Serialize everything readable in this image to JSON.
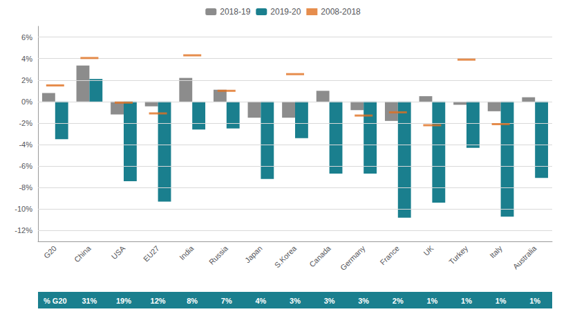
{
  "chart_data": {
    "type": "bar",
    "categories": [
      "G20",
      "China",
      "USA",
      "EU27",
      "India",
      "Russia",
      "Japan",
      "S.Korea",
      "Canada",
      "Germany",
      "France",
      "UK",
      "Turkey",
      "Italy",
      "Australia"
    ],
    "series": [
      {
        "name": "2018-19",
        "type": "bar",
        "color": "#8c8c8c",
        "values": [
          0.8,
          3.35,
          -1.2,
          -0.45,
          2.2,
          1.1,
          -1.5,
          -1.5,
          1.0,
          -0.8,
          -1.8,
          0.5,
          -0.3,
          -0.9,
          0.4
        ]
      },
      {
        "name": "2019-20",
        "type": "bar",
        "color": "#1a7f8e",
        "values": [
          -3.5,
          2.1,
          -7.4,
          -9.3,
          -2.6,
          -2.5,
          -7.2,
          -3.4,
          -6.7,
          -6.7,
          -10.8,
          -9.4,
          -4.3,
          -10.7,
          -7.1
        ]
      },
      {
        "name": "2008-2018",
        "type": "scatter",
        "marker": "dash",
        "color": "#e07020",
        "values": [
          1.5,
          4.05,
          -0.1,
          -1.1,
          4.3,
          1.0,
          null,
          2.55,
          null,
          -1.3,
          -1.0,
          -2.2,
          3.9,
          -2.1,
          null
        ]
      }
    ],
    "table_row": {
      "labels": [
        "% G20",
        "31%",
        "19%",
        "12%",
        "8%",
        "7%",
        "4%",
        "3%",
        "3%",
        "3%",
        "2%",
        "1%",
        "1%",
        "1%",
        "1%"
      ],
      "color": "#1a7f8e",
      "text_color": "#ffffff"
    },
    "ylim": [
      -13,
      7
    ],
    "yticks": [
      {
        "value": -12,
        "label": "-12%"
      },
      {
        "value": -10,
        "label": "-10%"
      },
      {
        "value": -8,
        "label": "-8%"
      },
      {
        "value": -6,
        "label": "-6%"
      },
      {
        "value": -4,
        "label": "-4%"
      },
      {
        "value": -2,
        "label": "-2%"
      },
      {
        "value": 0,
        "label": "0%"
      },
      {
        "value": 2,
        "label": "2%"
      },
      {
        "value": 4,
        "label": "4%"
      },
      {
        "value": 6,
        "label": "6%"
      }
    ],
    "grid": true,
    "legend": "top"
  }
}
